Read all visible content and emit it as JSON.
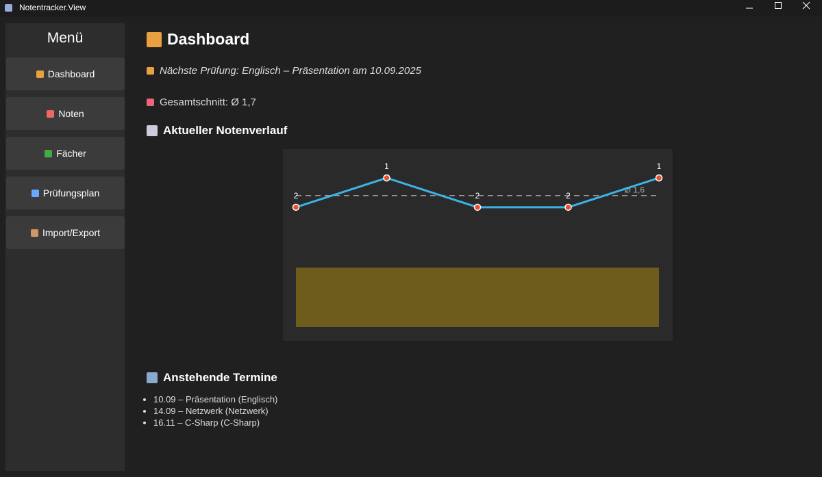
{
  "window": {
    "title": "Notentracker.View"
  },
  "menu": {
    "title": "Menü",
    "items": [
      "Dashboard",
      "Noten",
      "Fächer",
      "Prüfungsplan",
      "Import/Export"
    ]
  },
  "dashboard": {
    "title": "Dashboard",
    "next_exam": "Nächste Prüfung: Englisch – Präsentation am 10.09.2025",
    "overall_average": "Gesamtschnitt: Ø 1,7",
    "chart_heading": "Aktueller Notenverlauf",
    "appointments_heading": "Anstehende Termine",
    "appointments": [
      "10.09 – Präsentation (Englisch)",
      "14.09 – Netzwerk (Netzwerk)",
      "16.11 – C-Sharp (C-Sharp)"
    ]
  },
  "chart_data": {
    "type": "line",
    "categories": [
      null,
      null,
      null,
      null,
      null
    ],
    "values": [
      2,
      1,
      2,
      2,
      1
    ],
    "color": "#3bb3e6",
    "point_color": "#e8502f",
    "ylim": [
      2.4,
      0.8
    ],
    "reference_line": {
      "value": 1.6,
      "label": "Ø 1,6"
    }
  }
}
